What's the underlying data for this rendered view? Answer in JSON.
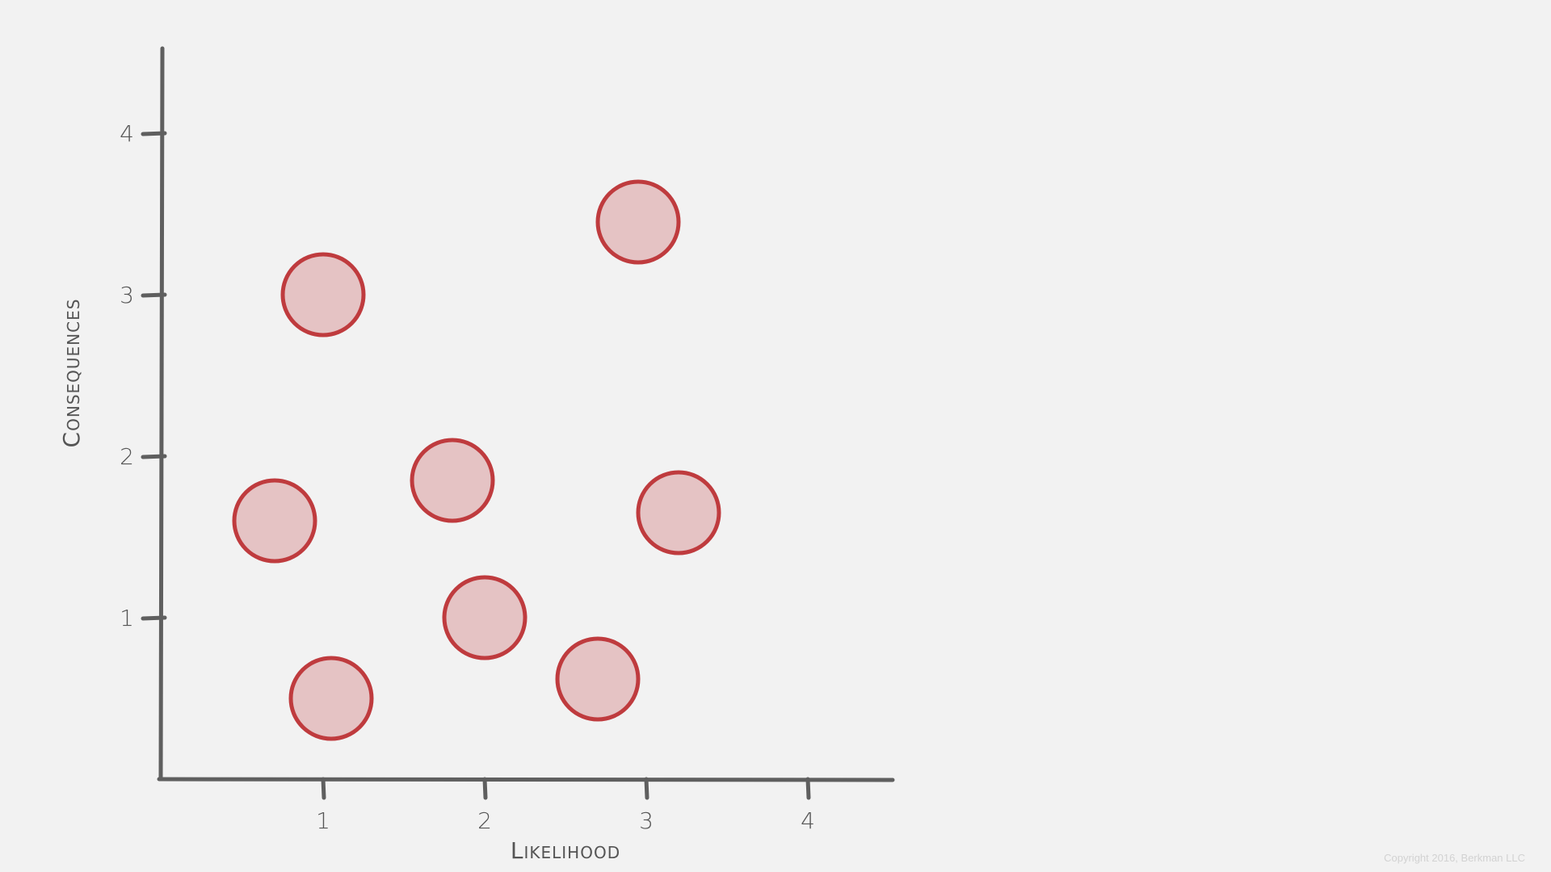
{
  "chart_data": {
    "type": "scatter",
    "title": "",
    "xlabel": "Likelihood",
    "ylabel": "Consequences",
    "xlim": [
      0,
      4.5
    ],
    "ylim": [
      0,
      4.5
    ],
    "x_ticks": [
      "1",
      "2",
      "3",
      "4"
    ],
    "y_ticks": [
      "1",
      "2",
      "3",
      "4"
    ],
    "grid": false,
    "legend": "none",
    "points": [
      {
        "x": 1.0,
        "y": 3.0
      },
      {
        "x": 2.95,
        "y": 3.45
      },
      {
        "x": 0.7,
        "y": 1.6
      },
      {
        "x": 1.8,
        "y": 1.85
      },
      {
        "x": 3.2,
        "y": 1.65
      },
      {
        "x": 2.0,
        "y": 1.0
      },
      {
        "x": 2.7,
        "y": 0.62
      },
      {
        "x": 1.05,
        "y": 0.5
      }
    ],
    "colors": {
      "point_fill": "#e5c3c4",
      "point_stroke": "#bf3b3e",
      "axis": "#5f5f5f"
    }
  },
  "footer": {
    "copyright": "Copyright 2016, Berkman LLC"
  }
}
